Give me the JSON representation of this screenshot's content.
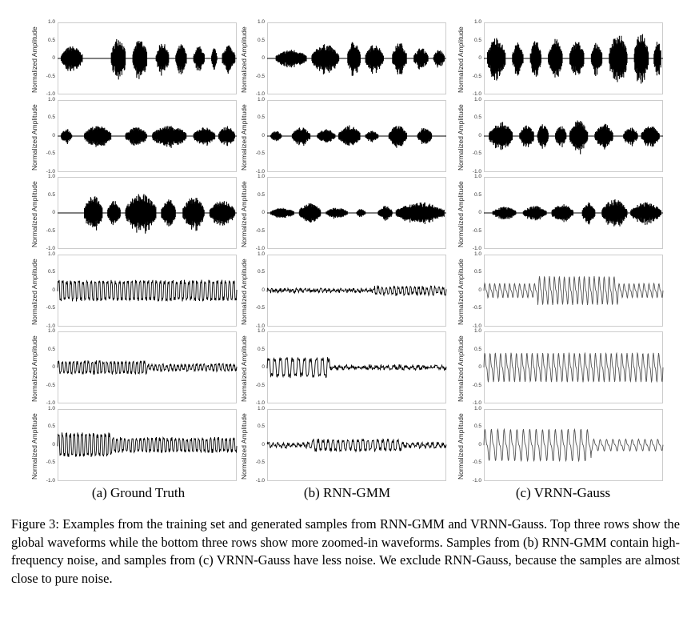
{
  "figure": {
    "y_axis_label": "Normalized Amplitude",
    "y_ticks": [
      "1.0",
      "0.5",
      "0",
      "-0.5",
      "-1.0"
    ],
    "subcaptions": [
      "(a) Ground Truth",
      "(b) RNN-GMM",
      "(c) VRNN-Gauss"
    ],
    "caption": "Figure 3: Examples from the training set and generated samples from RNN-GMM and VRNN-Gauss. Top three rows show the global waveforms while the bottom three rows show more zoomed-in waveforms. Samples from (b) RNN-GMM contain high-frequency noise, and samples from (c) VRNN-Gauss have less noise. We exclude RNN-Gauss, because the samples are almost close to pure noise.",
    "columns": [
      "Ground Truth",
      "RNN-GMM",
      "VRNN-Gauss"
    ],
    "rows": 6,
    "global_rows": 3,
    "zoomed_rows": 3,
    "panel_border_color": "#cccccc",
    "waveform_color": "#000000",
    "zoomed_waveform_color": "#555555"
  }
}
